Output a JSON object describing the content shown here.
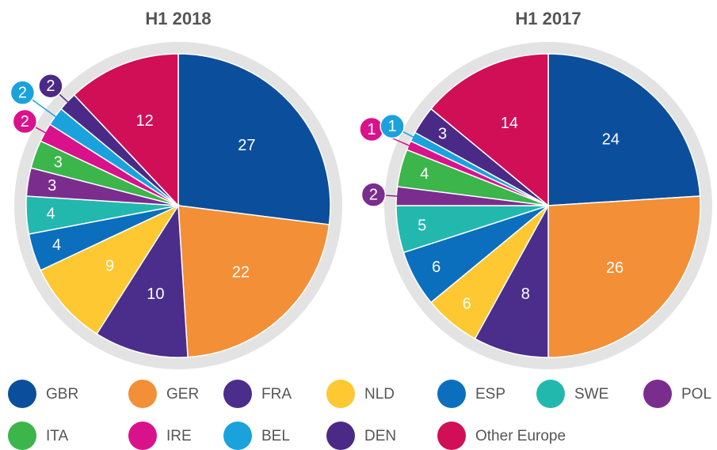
{
  "chart_data": [
    {
      "type": "pie",
      "title": "H1 2018",
      "values": [
        27,
        22,
        10,
        9,
        4,
        4,
        3,
        3,
        2,
        2,
        2,
        12
      ]
    },
    {
      "type": "pie",
      "title": "H1 2017",
      "values": [
        24,
        26,
        8,
        6,
        6,
        5,
        2,
        4,
        1,
        1,
        3,
        14
      ]
    }
  ],
  "legend": {
    "categories": [
      "GBR",
      "GER",
      "FRA",
      "NLD",
      "ESP",
      "SWE",
      "POL",
      "ITA",
      "IRE",
      "BEL",
      "DEN",
      "Other Europe"
    ],
    "colors": [
      "#0b4f9c",
      "#f38f36",
      "#4b2d8c",
      "#fdc831",
      "#0b6fbd",
      "#22b8ae",
      "#7b2d8e",
      "#3cb54b",
      "#d9128c",
      "#1aa2dd",
      "#4a2a86",
      "#d00f57"
    ]
  }
}
